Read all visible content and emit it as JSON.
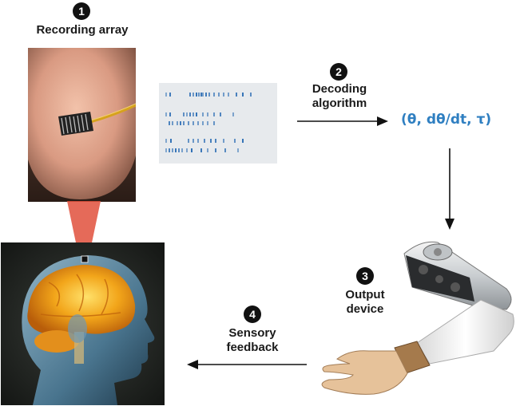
{
  "steps": [
    {
      "number": "1",
      "label": "Recording array"
    },
    {
      "number": "2",
      "label_lines": [
        "Decoding",
        "algorithm"
      ]
    },
    {
      "number": "3",
      "label_lines": [
        "Output",
        "device"
      ]
    },
    {
      "number": "4",
      "label_lines": [
        "Sensory",
        "feedback"
      ]
    }
  ],
  "formula": "(θ, dθ/dt, τ)",
  "colors": {
    "formula": "#2f7fc1",
    "arrow": "#111111",
    "spike": "#2f6fb5",
    "raster_bg": "#e7eaed",
    "connector": "#e0503c"
  },
  "icons": {
    "recording_array": "microelectrode-array-on-fingertip",
    "brain": "human-head-with-brain",
    "output": "prosthetic-arm"
  },
  "raster_rows": [
    [
      0,
      5,
      30,
      34,
      38,
      41,
      44,
      46,
      50,
      54,
      60,
      66,
      72,
      78,
      88,
      96,
      106
    ],
    [
      0,
      5,
      22,
      26,
      30,
      34,
      38,
      46,
      52,
      60,
      68,
      84
    ],
    [
      4,
      8,
      14,
      18,
      22,
      28,
      34,
      40,
      46,
      52,
      60
    ],
    [
      0,
      6,
      28,
      34,
      40,
      48,
      56,
      62,
      72,
      86,
      96
    ],
    [
      0,
      4,
      8,
      12,
      16,
      20,
      26,
      32,
      44,
      52,
      62,
      74,
      90
    ]
  ]
}
